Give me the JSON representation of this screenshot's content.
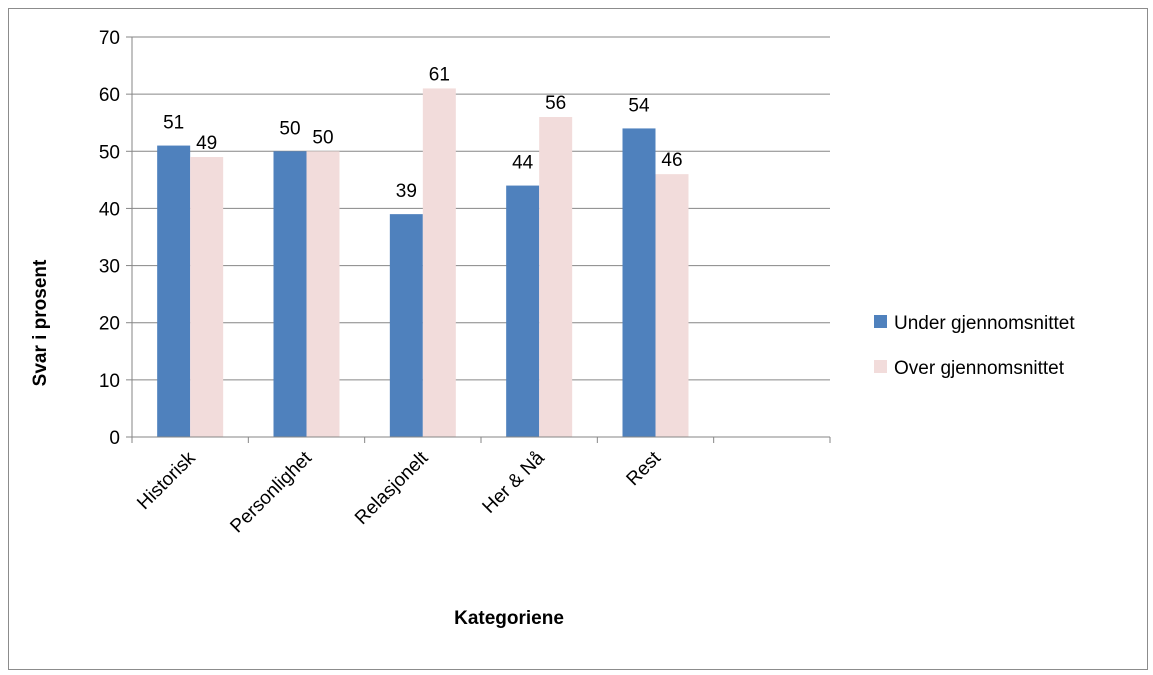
{
  "chart_data": {
    "type": "bar",
    "title": "",
    "xlabel": "Kategoriene",
    "ylabel": "Svar i prosent",
    "categories": [
      "Historisk",
      "Personlighet",
      "Relasjonelt",
      "Her & Nå",
      "Rest",
      ""
    ],
    "series": [
      {
        "name": "Under gjennomsnittet",
        "color": "#4f81bd",
        "values": [
          51,
          50,
          39,
          44,
          54,
          null
        ]
      },
      {
        "name": "Over gjennomsnittet",
        "color": "#f2dcdb",
        "values": [
          49,
          50,
          61,
          56,
          46,
          null
        ]
      }
    ],
    "ylim": [
      0,
      70
    ],
    "yticks": [
      "0",
      "10",
      "20",
      "30",
      "40",
      "50",
      "60",
      "70"
    ],
    "grid": true,
    "data_labels": true,
    "legend_position": "right"
  }
}
